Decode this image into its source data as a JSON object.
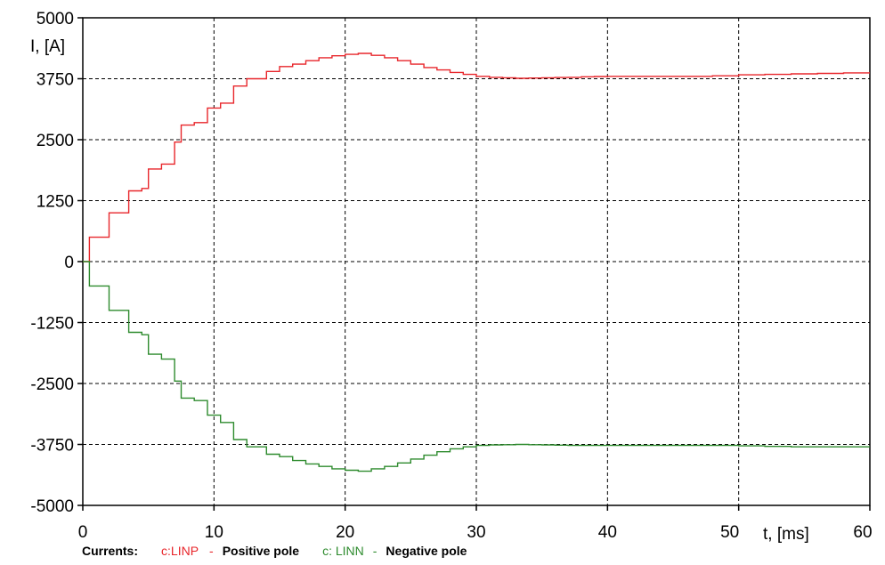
{
  "colors": {
    "positive": "#e8262b",
    "negative": "#2e8b2e",
    "grid": "#000000",
    "background": "#ffffff"
  },
  "chart_data": {
    "type": "line",
    "xlabel": "t, [ms]",
    "ylabel": "I, [A]",
    "xlim": [
      0,
      60
    ],
    "ylim": [
      -5000,
      5000
    ],
    "x_ticks": [
      0,
      10,
      20,
      30,
      40,
      50,
      60
    ],
    "y_ticks": [
      -5000,
      -3750,
      -2500,
      -1250,
      0,
      1250,
      2500,
      3750,
      5000
    ],
    "x_tick_labels": [
      "0",
      "10",
      "20",
      "30",
      "40",
      "50",
      "60"
    ],
    "y_tick_labels": [
      "-5000",
      "-3750",
      "-2500",
      "-1250",
      "0",
      "1250",
      "2500",
      "3750",
      "5000"
    ],
    "grid": true,
    "legend_position": "bottom",
    "series": [
      {
        "name": "c:LINP",
        "color": "#e8262b",
        "x": [
          0,
          0.5,
          1,
          2,
          2.5,
          3.5,
          4.5,
          5,
          6,
          7,
          7.5,
          8.5,
          9.5,
          10.5,
          11.5,
          12.5,
          14,
          15,
          16,
          17,
          18,
          19,
          20,
          21,
          22,
          23,
          24,
          25,
          26,
          27,
          28,
          29,
          30,
          31,
          32,
          33,
          34,
          35,
          36,
          37,
          38,
          39,
          40,
          42,
          44,
          46,
          48,
          50,
          52,
          54,
          56,
          58,
          60
        ],
        "y": [
          0,
          500,
          500,
          1000,
          1000,
          1450,
          1500,
          1900,
          2000,
          2450,
          2800,
          2850,
          3150,
          3250,
          3600,
          3750,
          3900,
          4000,
          4050,
          4120,
          4180,
          4220,
          4250,
          4270,
          4230,
          4180,
          4120,
          4050,
          3980,
          3930,
          3880,
          3840,
          3800,
          3780,
          3770,
          3760,
          3765,
          3770,
          3775,
          3780,
          3790,
          3795,
          3800,
          3800,
          3800,
          3800,
          3810,
          3830,
          3840,
          3850,
          3860,
          3870,
          3870
        ]
      },
      {
        "name": "c:LINN",
        "color": "#2e8b2e",
        "x": [
          0,
          0.5,
          1,
          2,
          2.5,
          3.5,
          4.5,
          5,
          6,
          7,
          7.5,
          8.5,
          9.5,
          10.5,
          11.5,
          12.5,
          14,
          15,
          16,
          17,
          18,
          19,
          20,
          21,
          22,
          23,
          24,
          25,
          26,
          27,
          28,
          29,
          30,
          31,
          32,
          33,
          34,
          35,
          36,
          37,
          38,
          39,
          40,
          42,
          44,
          46,
          48,
          50,
          52,
          54,
          56,
          58,
          60
        ],
        "y": [
          0,
          -500,
          -500,
          -1000,
          -1000,
          -1450,
          -1500,
          -1900,
          -2000,
          -2450,
          -2800,
          -2850,
          -3150,
          -3300,
          -3650,
          -3800,
          -3950,
          -4000,
          -4080,
          -4150,
          -4200,
          -4250,
          -4280,
          -4300,
          -4250,
          -4200,
          -4130,
          -4050,
          -3970,
          -3900,
          -3840,
          -3800,
          -3770,
          -3760,
          -3755,
          -3750,
          -3755,
          -3760,
          -3765,
          -3770,
          -3770,
          -3770,
          -3770,
          -3770,
          -3770,
          -3770,
          -3770,
          -3780,
          -3790,
          -3800,
          -3800,
          -3800,
          -3800
        ]
      }
    ]
  },
  "legend": {
    "prefix": "Currents:",
    "items": [
      {
        "code": "c:LINP",
        "dash": "-",
        "description": "Positive pole",
        "color": "#e8262b"
      },
      {
        "code": "c: LINN",
        "dash": "-",
        "description": "Negative pole",
        "color": "#2e8b2e"
      }
    ]
  }
}
